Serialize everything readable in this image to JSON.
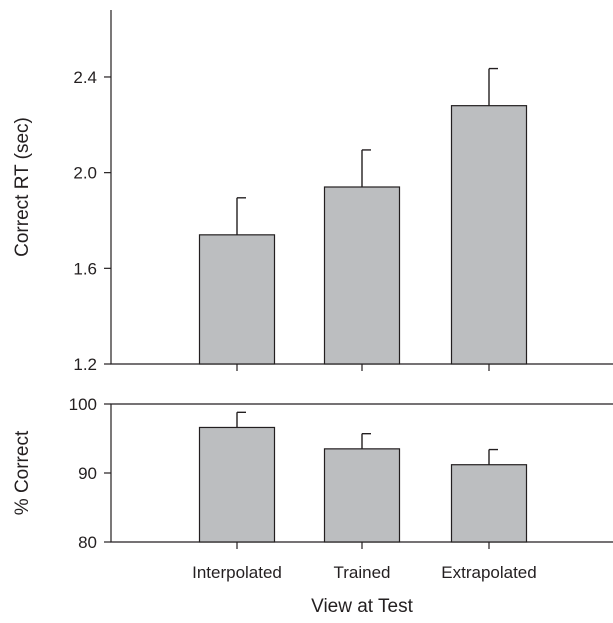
{
  "chart_data": {
    "type": "bar",
    "x_categories": [
      "Interpolated",
      "Trained",
      "Extrapolated"
    ],
    "xlabel": "View at Test",
    "panels": [
      {
        "id": "rt",
        "ylabel": "Correct RT (sec)",
        "ylim": [
          1.2,
          2.68
        ],
        "yticks": [
          "1.2",
          "1.6",
          "2.0",
          "2.4"
        ],
        "ytick_values": [
          1.2,
          1.6,
          2.0,
          2.4
        ],
        "values": [
          1.74,
          1.94,
          2.28
        ],
        "errors": [
          0.155,
          0.155,
          0.155
        ],
        "bar_color": "#bcbec0"
      },
      {
        "id": "accuracy",
        "ylabel": "% Correct",
        "ylim": [
          80,
          100
        ],
        "yticks": [
          "80",
          "90",
          "100"
        ],
        "ytick_values": [
          80,
          90,
          100
        ],
        "values": [
          96.6,
          93.5,
          91.2
        ],
        "errors": [
          2.2,
          2.2,
          2.2
        ],
        "bar_color": "#bcbec0"
      }
    ]
  }
}
